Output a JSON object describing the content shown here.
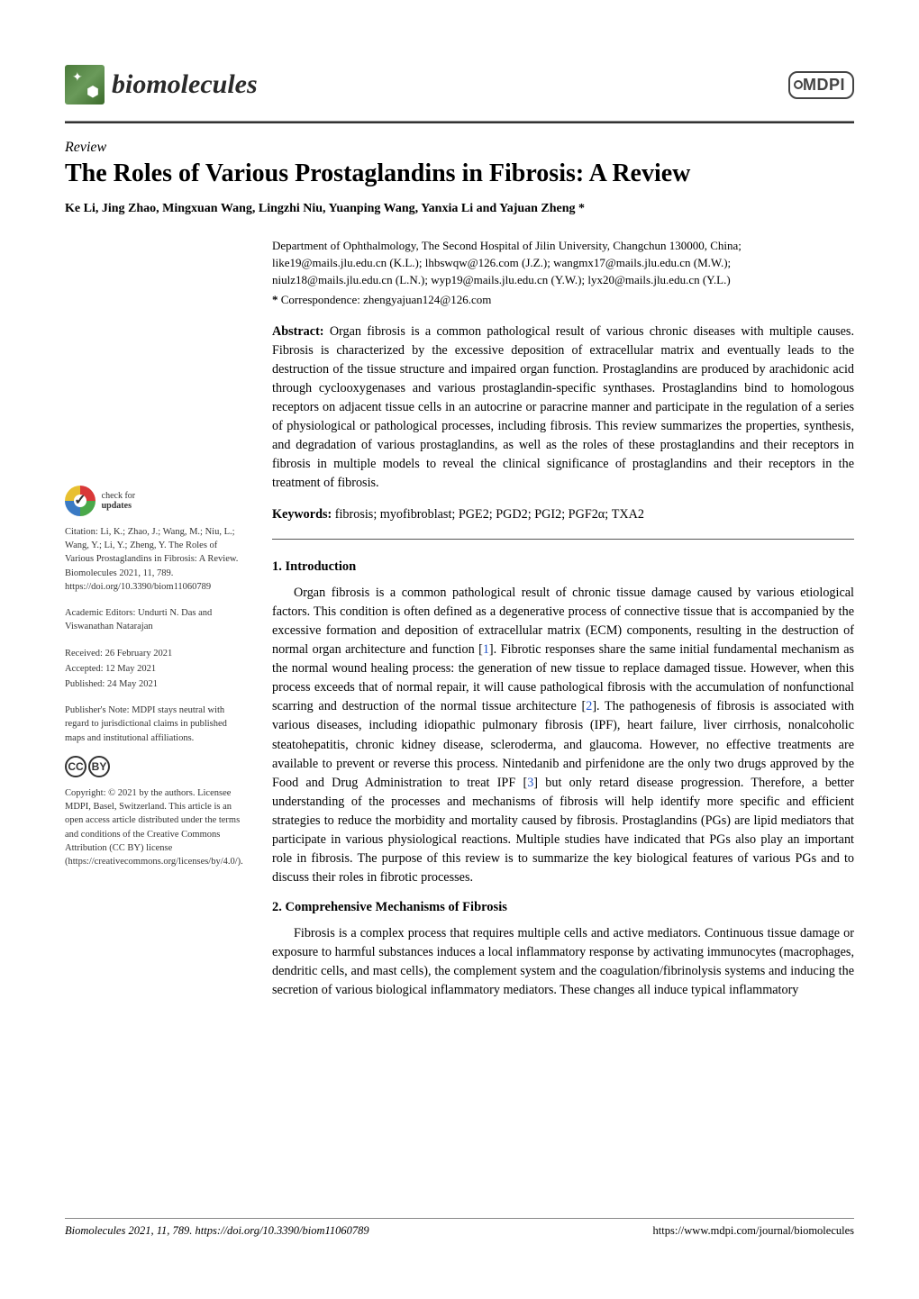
{
  "journal": {
    "name": "biomolecules",
    "publisher_logo_text": "MDPI"
  },
  "article": {
    "type": "Review",
    "title": "The Roles of Various Prostaglandins in Fibrosis: A Review",
    "authors": "Ke Li, Jing Zhao, Mingxuan Wang, Lingzhi Niu, Yuanping Wang, Yanxia Li and Yajuan Zheng *",
    "affiliation": "Department of Ophthalmology, The Second Hospital of Jilin University, Changchun 130000, China; like19@mails.jlu.edu.cn (K.L.); lhbswqw@126.com (J.Z.); wangmx17@mails.jlu.edu.cn (M.W.); niulz18@mails.jlu.edu.cn (L.N.); wyp19@mails.jlu.edu.cn (Y.W.); lyx20@mails.jlu.edu.cn (Y.L.)",
    "correspondence_label": "*",
    "correspondence": "Correspondence: zhengyajuan124@126.com",
    "abstract_label": "Abstract:",
    "abstract": "Organ fibrosis is a common pathological result of various chronic diseases with multiple causes. Fibrosis is characterized by the excessive deposition of extracellular matrix and eventually leads to the destruction of the tissue structure and impaired organ function. Prostaglandins are produced by arachidonic acid through cyclooxygenases and various prostaglandin-specific synthases. Prostaglandins bind to homologous receptors on adjacent tissue cells in an autocrine or paracrine manner and participate in the regulation of a series of physiological or pathological processes, including fibrosis. This review summarizes the properties, synthesis, and degradation of various prostaglandins, as well as the roles of these prostaglandins and their receptors in fibrosis in multiple models to reveal the clinical significance of prostaglandins and their receptors in the treatment of fibrosis.",
    "keywords_label": "Keywords:",
    "keywords": "fibrosis; myofibroblast; PGE2; PGD2; PGI2; PGF2α; TXA2"
  },
  "sidebar": {
    "check_updates_l1": "check for",
    "check_updates_l2": "updates",
    "citation": "Citation: Li, K.; Zhao, J.; Wang, M.; Niu, L.; Wang, Y.; Li, Y.; Zheng, Y. The Roles of Various Prostaglandins in Fibrosis: A Review. Biomolecules 2021, 11, 789. https://doi.org/10.3390/biom11060789",
    "editors": "Academic Editors: Undurti N. Das and Viswanathan Natarajan",
    "received": "Received: 26 February 2021",
    "accepted": "Accepted: 12 May 2021",
    "published": "Published: 24 May 2021",
    "publishers_note": "Publisher's Note: MDPI stays neutral with regard to jurisdictional claims in published maps and institutional affiliations.",
    "cc_label_1": "cc",
    "cc_label_2": "🄯",
    "copyright": "Copyright: © 2021 by the authors. Licensee MDPI, Basel, Switzerland. This article is an open access article distributed under the terms and conditions of the Creative Commons Attribution (CC BY) license (https://creativecommons.org/licenses/by/4.0/)."
  },
  "sections": {
    "s1_heading": "1. Introduction",
    "s1_body": "Organ fibrosis is a common pathological result of chronic tissue damage caused by various etiological factors. This condition is often defined as a degenerative process of connective tissue that is accompanied by the excessive formation and deposition of extracellular matrix (ECM) components, resulting in the destruction of normal organ architecture and function [1]. Fibrotic responses share the same initial fundamental mechanism as the normal wound healing process: the generation of new tissue to replace damaged tissue. However, when this process exceeds that of normal repair, it will cause pathological fibrosis with the accumulation of nonfunctional scarring and destruction of the normal tissue architecture [2]. The pathogenesis of fibrosis is associated with various diseases, including idiopathic pulmonary fibrosis (IPF), heart failure, liver cirrhosis, nonalcoholic steatohepatitis, chronic kidney disease, scleroderma, and glaucoma. However, no effective treatments are available to prevent or reverse this process. Nintedanib and pirfenidone are the only two drugs approved by the Food and Drug Administration to treat IPF [3] but only retard disease progression. Therefore, a better understanding of the processes and mechanisms of fibrosis will help identify more specific and efficient strategies to reduce the morbidity and mortality caused by fibrosis. Prostaglandins (PGs) are lipid mediators that participate in various physiological reactions. Multiple studies have indicated that PGs also play an important role in fibrosis. The purpose of this review is to summarize the key biological features of various PGs and to discuss their roles in fibrotic processes.",
    "s2_heading": "2. Comprehensive Mechanisms of Fibrosis",
    "s2_body": "Fibrosis is a complex process that requires multiple cells and active mediators. Continuous tissue damage or exposure to harmful substances induces a local inflammatory response by activating immunocytes (macrophages, dendritic cells, and mast cells), the complement system and the coagulation/fibrinolysis systems and inducing the secretion of various biological inflammatory mediators. These changes all induce typical inflammatory"
  },
  "footer": {
    "left": "Biomolecules 2021, 11, 789. https://doi.org/10.3390/biom11060789",
    "right": "https://www.mdpi.com/journal/biomolecules"
  },
  "refs": {
    "r1": "1",
    "r2": "2",
    "r3": "3"
  }
}
